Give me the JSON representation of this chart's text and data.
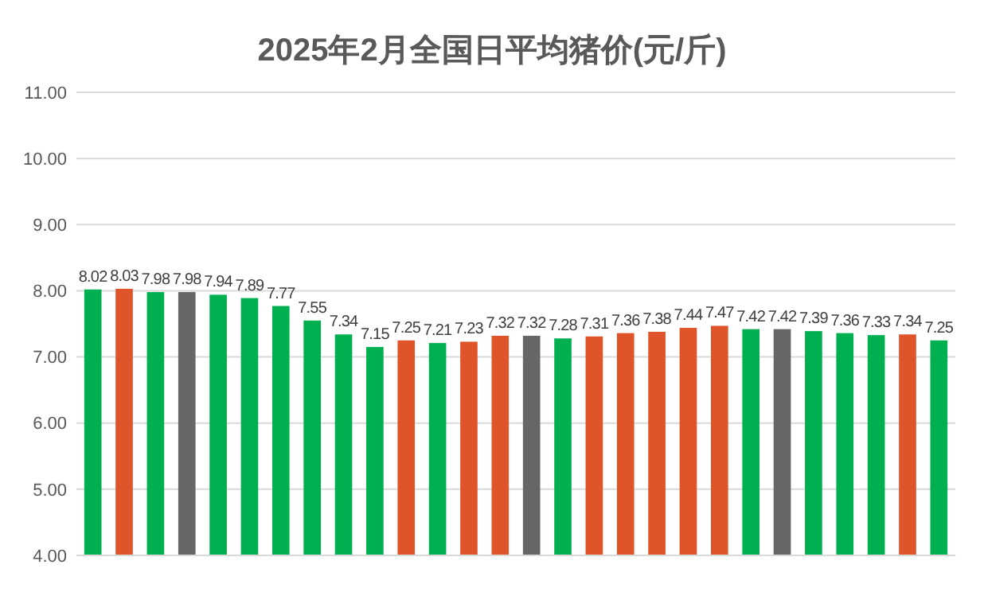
{
  "chart_data": {
    "type": "bar",
    "title": "2025年2月全国日平均猪价(元/斤)",
    "categories": [
      null,
      null,
      null,
      null,
      null,
      null,
      null,
      null,
      null,
      null,
      null,
      null,
      null,
      null,
      null,
      null,
      null,
      null,
      null,
      null,
      null,
      null,
      null,
      null,
      null,
      null,
      null,
      null
    ],
    "values": [
      8.02,
      8.03,
      7.98,
      7.98,
      7.94,
      7.89,
      7.77,
      7.55,
      7.34,
      7.15,
      7.25,
      7.21,
      7.23,
      7.32,
      7.32,
      7.28,
      7.31,
      7.36,
      7.38,
      7.44,
      7.47,
      7.42,
      7.42,
      7.39,
      7.36,
      7.33,
      7.34,
      7.25
    ],
    "colors": [
      "#00b050",
      "#e0542a",
      "#00b050",
      "#666666",
      "#00b050",
      "#00b050",
      "#00b050",
      "#00b050",
      "#00b050",
      "#00b050",
      "#e0542a",
      "#00b050",
      "#e0542a",
      "#e0542a",
      "#666666",
      "#00b050",
      "#e0542a",
      "#e0542a",
      "#e0542a",
      "#e0542a",
      "#e0542a",
      "#00b050",
      "#666666",
      "#00b050",
      "#00b050",
      "#00b050",
      "#e0542a",
      "#00b050"
    ],
    "ylim": [
      4,
      11
    ],
    "yticks": [
      {
        "value": 4,
        "label": "4.00"
      },
      {
        "value": 5,
        "label": "5.00"
      },
      {
        "value": 6,
        "label": "6.00"
      },
      {
        "value": 7,
        "label": "7.00"
      },
      {
        "value": 8,
        "label": "8.00"
      },
      {
        "value": 9,
        "label": "9.00"
      },
      {
        "value": 10,
        "label": "10.00"
      },
      {
        "value": 11,
        "label": "11.00"
      }
    ],
    "grid": "y",
    "data_labels": true
  }
}
